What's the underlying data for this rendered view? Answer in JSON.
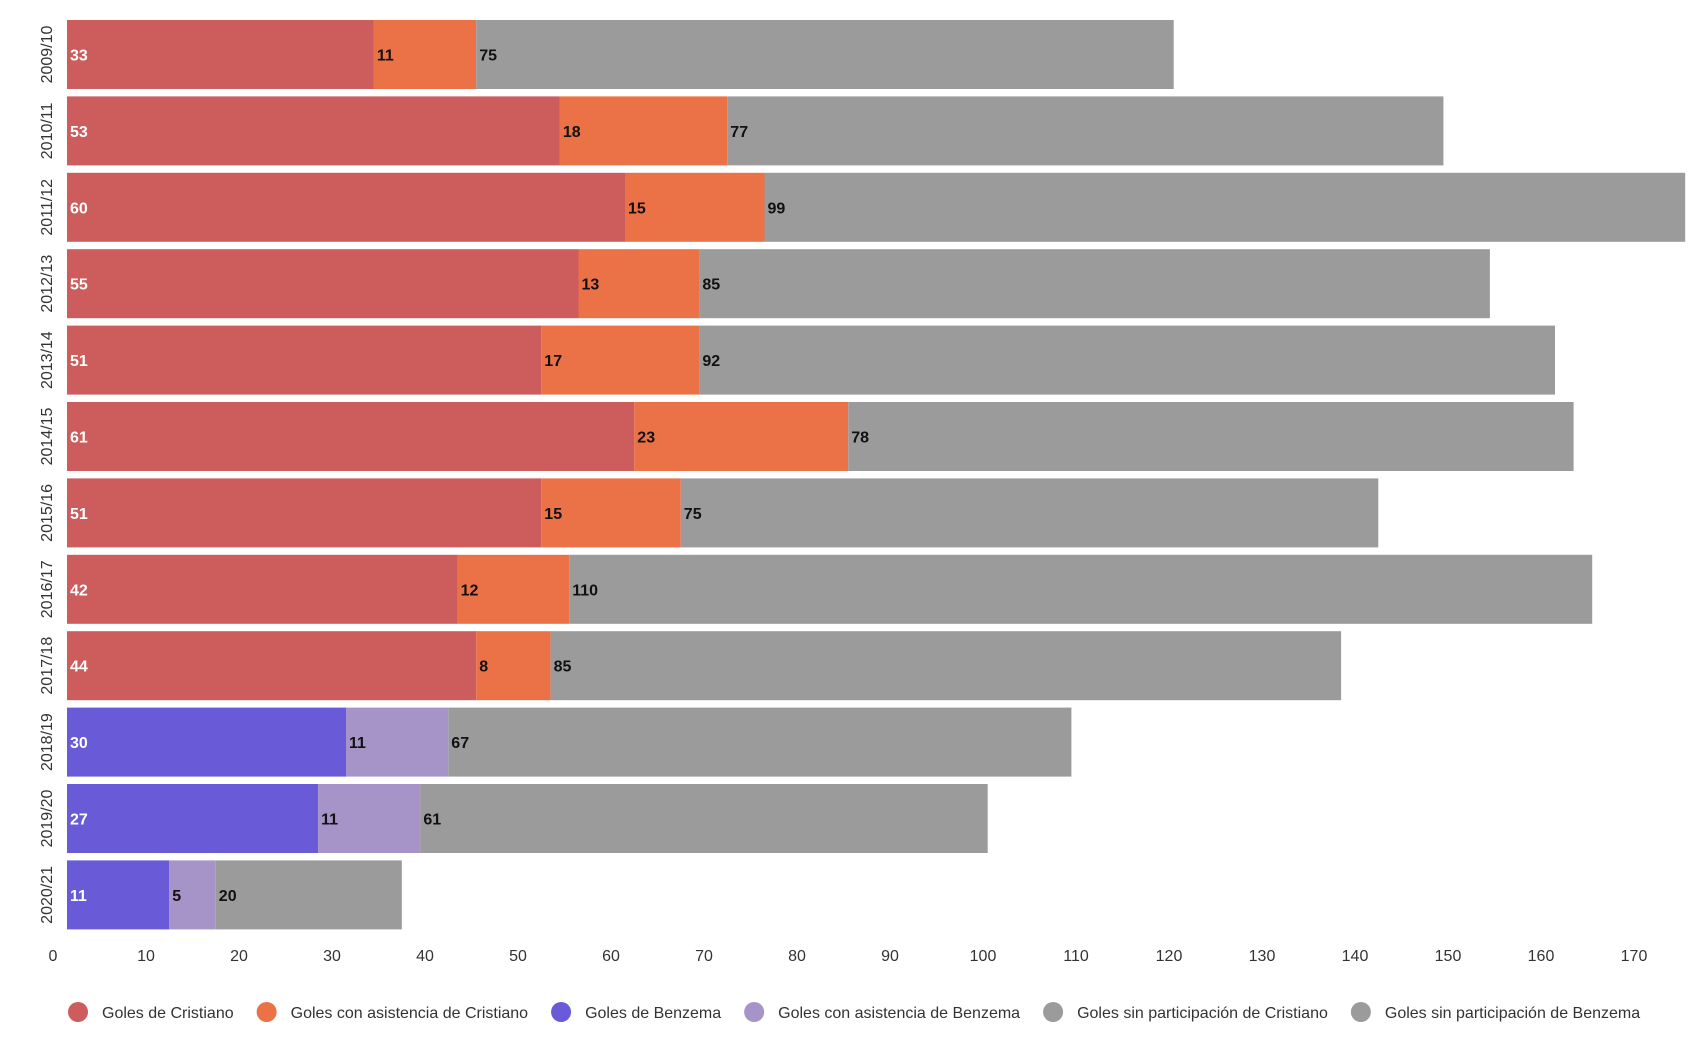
{
  "chart_data": {
    "type": "bar",
    "orientation": "horizontal",
    "stacked": true,
    "title": "",
    "xlabel": "",
    "ylabel": "",
    "xlim": [
      0,
      175
    ],
    "x_ticks": [
      "0",
      "10",
      "20",
      "30",
      "40",
      "50",
      "60",
      "70",
      "80",
      "90",
      "100",
      "110",
      "120",
      "130",
      "140",
      "150",
      "160",
      "170"
    ],
    "grid": false,
    "legend_position": "bottom",
    "categories": [
      "2009/10",
      "2010/11",
      "2011/12",
      "2012/13",
      "2013/14",
      "2014/15",
      "2015/16",
      "2016/17",
      "2017/18",
      "2018/19",
      "2019/20",
      "2020/21"
    ],
    "series": [
      {
        "name": "Goles de Cristiano",
        "color": "#CD5C5C",
        "label_color": "#ffffff",
        "values": [
          33,
          53,
          60,
          55,
          51,
          61,
          51,
          42,
          44,
          null,
          null,
          null
        ]
      },
      {
        "name": "Goles con asistencia de Cristiano",
        "color": "#EB7146",
        "label_color": "#111111",
        "values": [
          11,
          18,
          15,
          13,
          17,
          23,
          15,
          12,
          8,
          null,
          null,
          null
        ]
      },
      {
        "name": "Goles de Benzema",
        "color": "#695AD7",
        "label_color": "#ffffff",
        "values": [
          null,
          null,
          null,
          null,
          null,
          null,
          null,
          null,
          null,
          30,
          27,
          11
        ]
      },
      {
        "name": "Goles con asistencia de Benzema",
        "color": "#A694C9",
        "label_color": "#111111",
        "values": [
          null,
          null,
          null,
          null,
          null,
          null,
          null,
          null,
          null,
          11,
          11,
          5
        ]
      },
      {
        "name": "Goles sin participación de Cristiano",
        "color": "#9B9B9B",
        "label_color": "#111111",
        "values": [
          75,
          77,
          99,
          85,
          92,
          78,
          75,
          110,
          85,
          null,
          null,
          null
        ]
      },
      {
        "name": "Goles sin participación de Benzema",
        "color": "#9B9B9B",
        "label_color": "#111111",
        "values": [
          null,
          null,
          null,
          null,
          null,
          null,
          null,
          null,
          null,
          67,
          61,
          20
        ]
      }
    ]
  }
}
